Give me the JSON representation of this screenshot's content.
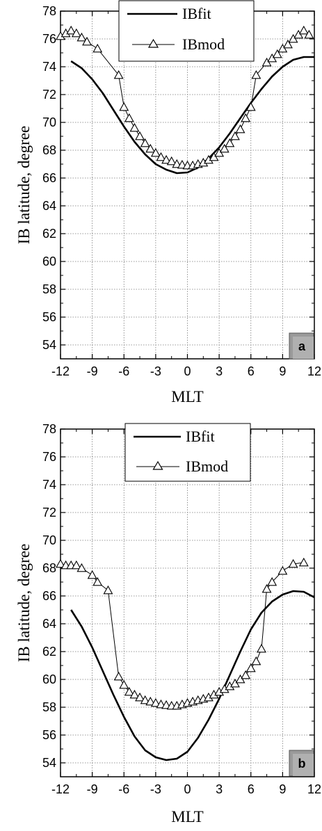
{
  "chart_data": [
    {
      "type": "line",
      "panel_label": "a",
      "xlabel": "MLT",
      "ylabel": "IB latitude, degree",
      "xlim": [
        -12,
        12
      ],
      "ylim": [
        53,
        78
      ],
      "xticks": [
        -12,
        -9,
        -6,
        -3,
        0,
        3,
        6,
        9,
        12
      ],
      "yticks": [
        54,
        56,
        58,
        60,
        62,
        64,
        66,
        68,
        70,
        72,
        74,
        76,
        78
      ],
      "grid": true,
      "legend_position": "top-center",
      "series": [
        {
          "name": "IBfit",
          "marker": "none",
          "x": [
            -11,
            -10,
            -9,
            -8,
            -7,
            -6,
            -5,
            -4,
            -3,
            -2,
            -1,
            0,
            1,
            2,
            3,
            4,
            5,
            6,
            7,
            8,
            9,
            10,
            11,
            12
          ],
          "y": [
            74.4,
            73.9,
            73.1,
            72.1,
            70.9,
            69.7,
            68.6,
            67.7,
            67.0,
            66.6,
            66.35,
            66.4,
            66.75,
            67.4,
            68.2,
            69.2,
            70.3,
            71.4,
            72.4,
            73.3,
            74.0,
            74.5,
            74.7,
            74.7
          ]
        },
        {
          "name": "IBmod",
          "marker": "triangle",
          "x": [
            -12,
            -11.5,
            -11,
            -10.5,
            -10,
            -9.5,
            -8.5,
            -6.5,
            -6,
            -5.5,
            -5,
            -4.5,
            -4,
            -3.5,
            -3,
            -2.5,
            -2,
            -1.5,
            -1,
            -0.5,
            0,
            0.5,
            1,
            1.5,
            2,
            2.5,
            3,
            3.5,
            4,
            4.5,
            5,
            5.5,
            6,
            6.5,
            7.5,
            8,
            8.5,
            9,
            9.5,
            10,
            10.5,
            11,
            11.5
          ],
          "y": [
            76.2,
            76.4,
            76.6,
            76.4,
            76.1,
            75.8,
            75.3,
            73.4,
            71.1,
            70.3,
            69.6,
            69.0,
            68.5,
            68.1,
            67.8,
            67.5,
            67.3,
            67.2,
            67.0,
            66.95,
            66.9,
            66.9,
            67.0,
            67.1,
            67.3,
            67.5,
            67.8,
            68.1,
            68.5,
            69.0,
            69.5,
            70.3,
            71.1,
            73.4,
            74.3,
            74.6,
            74.9,
            75.3,
            75.6,
            76.0,
            76.3,
            76.6,
            76.3
          ]
        }
      ]
    },
    {
      "type": "line",
      "panel_label": "b",
      "xlabel": "MLT",
      "ylabel": "IB latitude, degree",
      "xlim": [
        -12,
        12
      ],
      "ylim": [
        53,
        78
      ],
      "xticks": [
        -12,
        -9,
        -6,
        -3,
        0,
        3,
        6,
        9,
        12
      ],
      "yticks": [
        54,
        56,
        58,
        60,
        62,
        64,
        66,
        68,
        70,
        72,
        74,
        76,
        78
      ],
      "grid": true,
      "legend_position": "top-center",
      "series": [
        {
          "name": "IBfit",
          "marker": "none",
          "x": [
            -11,
            -10,
            -9,
            -8,
            -7,
            -6,
            -5,
            -4,
            -3,
            -2,
            -1,
            0,
            1,
            2,
            3,
            4,
            5,
            6,
            7,
            8,
            9,
            10,
            11,
            12
          ],
          "y": [
            65.0,
            63.8,
            62.3,
            60.6,
            58.9,
            57.3,
            55.9,
            54.9,
            54.4,
            54.2,
            54.3,
            54.8,
            55.8,
            57.1,
            58.6,
            60.3,
            62.0,
            63.6,
            64.8,
            65.6,
            66.1,
            66.35,
            66.3,
            65.9
          ]
        },
        {
          "name": "IBmod",
          "marker": "triangle",
          "x": [
            -12,
            -11.5,
            -11,
            -10.5,
            -10,
            -9,
            -8.5,
            -7.5,
            -6.5,
            -6,
            -5.5,
            -5,
            -4.5,
            -4,
            -3.5,
            -3,
            -2.5,
            -2,
            -1.5,
            -1,
            -0.5,
            0,
            0.5,
            1,
            1.5,
            2,
            2.5,
            3,
            3.5,
            4,
            4.5,
            5,
            5.5,
            6,
            6.5,
            7,
            7.5,
            8,
            9,
            10,
            11
          ],
          "y": [
            68.3,
            68.2,
            68.2,
            68.2,
            68.0,
            67.5,
            67.0,
            66.4,
            60.2,
            59.6,
            59.1,
            58.9,
            58.7,
            58.5,
            58.4,
            58.3,
            58.2,
            58.15,
            58.1,
            58.1,
            58.2,
            58.3,
            58.4,
            58.5,
            58.6,
            58.7,
            58.9,
            59.1,
            59.3,
            59.5,
            59.7,
            60.0,
            60.3,
            60.8,
            61.3,
            62.2,
            66.5,
            67.0,
            67.8,
            68.3,
            68.4
          ]
        }
      ]
    }
  ]
}
